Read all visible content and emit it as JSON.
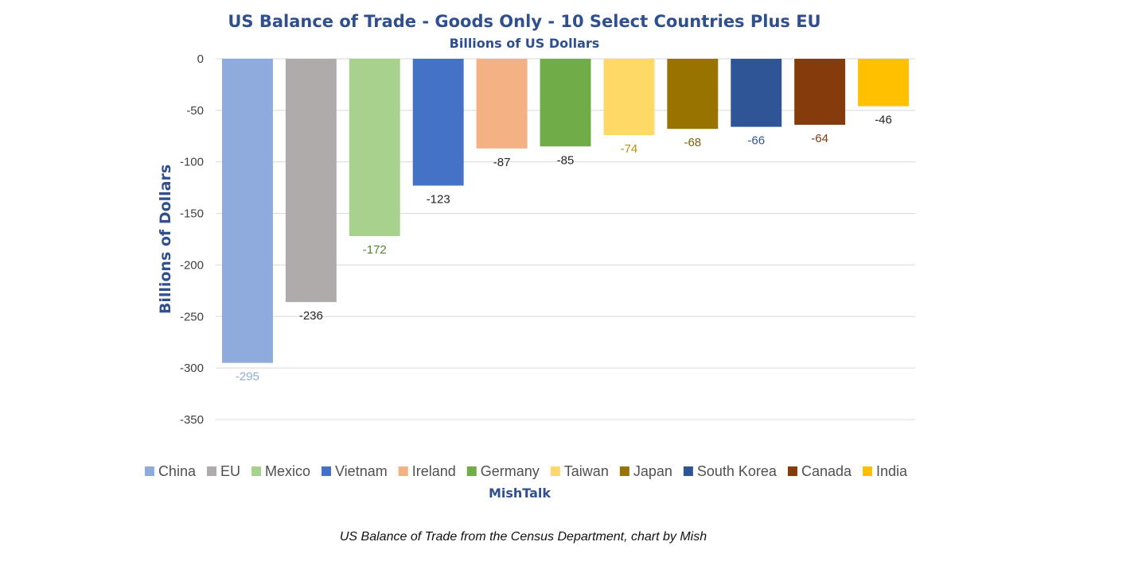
{
  "chart_data": {
    "type": "bar",
    "title": "US Balance of Trade - Goods Only - 10 Select Countries Plus EU",
    "subtitle": "Billions of US Dollars",
    "ylabel": "Billions of Dollars",
    "xlabel": "",
    "ylim": [
      -350,
      0
    ],
    "yticks": [
      0,
      -50,
      -100,
      -150,
      -200,
      -250,
      -300,
      -350
    ],
    "grid": true,
    "legend_position": "bottom",
    "categories": [
      "China",
      "EU",
      "Mexico",
      "Vietnam",
      "Ireland",
      "Germany",
      "Taiwan",
      "Japan",
      "South Korea",
      "Canada",
      "India"
    ],
    "values": [
      -295,
      -236,
      -172,
      -123,
      -87,
      -85,
      -74,
      -68,
      -66,
      -64,
      -46
    ],
    "data_labels": [
      "-295",
      "-236",
      "-172",
      "-123",
      "-87",
      "-85",
      "-74",
      "-68",
      "-66",
      "-64",
      "-46"
    ],
    "colors": [
      "#8faadc",
      "#afabab",
      "#a9d18e",
      "#4472c4",
      "#f4b183",
      "#70ad47",
      "#ffd966",
      "#997300",
      "#2f5597",
      "#843c0c",
      "#ffc000"
    ],
    "label_colors": [
      "#8faadc",
      "#262626",
      "#548235",
      "#262626",
      "#262626",
      "#262626",
      "#bf9000",
      "#7f6000",
      "#2f5597",
      "#843c0c",
      "#262626"
    ],
    "footer": "MishTalk"
  },
  "caption": "US Balance of Trade from the Census Department, chart by Mish"
}
